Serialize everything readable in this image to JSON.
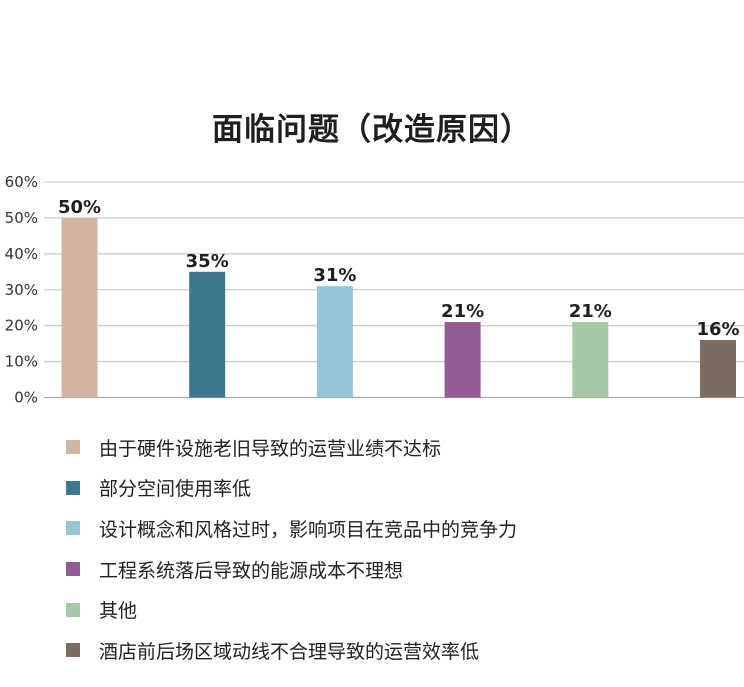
{
  "chart_data": {
    "type": "bar",
    "title": "面临问题（改造原因）",
    "categories": [
      "由于硬件设施老旧导致的运营业绩不达标",
      "部分空间使用率低",
      "设计概念和风格过时，影响项目在竞品中的竞争力",
      "工程系统落后导致的能源成本不理想",
      "其他",
      "酒店前后场区域动线不合理导致的运营效率低"
    ],
    "values": [
      50,
      35,
      31,
      21,
      21,
      16
    ],
    "value_labels": [
      "50%",
      "35%",
      "31%",
      "21%",
      "21%",
      "16%"
    ],
    "colors": [
      "#d3b4a3",
      "#3e788f",
      "#96c5d8",
      "#935a93",
      "#a6c8a6",
      "#7b6b60"
    ],
    "ylim": [
      0,
      60
    ],
    "yticks": [
      "0%",
      "10%",
      "20%",
      "30%",
      "40%",
      "50%",
      "60%"
    ],
    "grid": true,
    "legend_position": "bottom"
  }
}
